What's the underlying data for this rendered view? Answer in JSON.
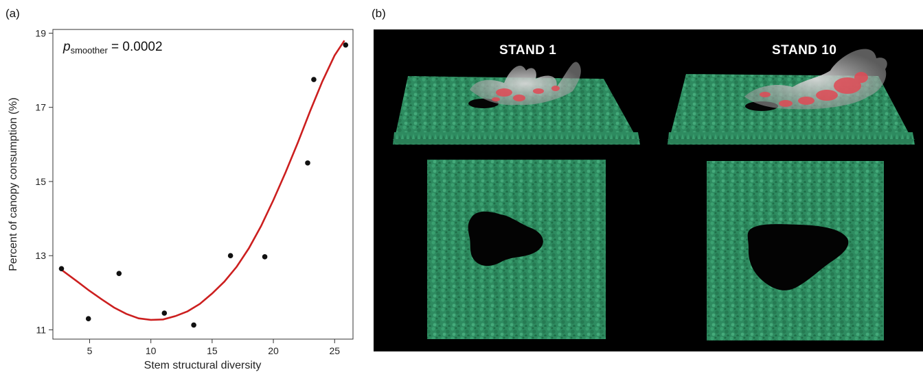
{
  "panels": {
    "a_label": "(a)",
    "b_label": "(b)"
  },
  "chart_data": {
    "type": "scatter",
    "annotation": {
      "symbol": "p",
      "subscript": "smoother",
      "text": " = 0.0002"
    },
    "xlabel": "Stem structural diversity",
    "ylabel": "Percent of canopy consumption (%)",
    "xlim": [
      2,
      26.5
    ],
    "ylim": [
      10.75,
      19.1
    ],
    "xticks": [
      5,
      10,
      15,
      20,
      25
    ],
    "yticks": [
      11,
      13,
      15,
      17,
      19
    ],
    "grid": false,
    "points": [
      {
        "x": 2.7,
        "y": 12.65
      },
      {
        "x": 4.9,
        "y": 11.3
      },
      {
        "x": 7.4,
        "y": 12.52
      },
      {
        "x": 11.1,
        "y": 11.45
      },
      {
        "x": 13.5,
        "y": 11.13
      },
      {
        "x": 16.5,
        "y": 13.0
      },
      {
        "x": 19.3,
        "y": 12.97
      },
      {
        "x": 22.8,
        "y": 15.5
      },
      {
        "x": 23.3,
        "y": 17.75
      },
      {
        "x": 25.9,
        "y": 18.68
      }
    ],
    "smoother": {
      "color": "#cc1f1f",
      "x": [
        2.7,
        4,
        5,
        6,
        7,
        8,
        9,
        10,
        11,
        12,
        13,
        14,
        15,
        16,
        17,
        18,
        19,
        20,
        21,
        22,
        23,
        24,
        25,
        25.8
      ],
      "y": [
        12.62,
        12.3,
        12.05,
        11.82,
        11.6,
        11.43,
        11.31,
        11.27,
        11.28,
        11.37,
        11.5,
        11.7,
        11.98,
        12.3,
        12.7,
        13.2,
        13.8,
        14.5,
        15.25,
        16.05,
        16.9,
        17.7,
        18.4,
        18.8
      ]
    },
    "point_color": "#111111"
  },
  "render": {
    "stand1_title": "STAND 1",
    "stand10_title": "STAND 10",
    "canopy_color": "#2e8b60",
    "fire_color": "#e04a55",
    "smoke_color": "#b5b5b5"
  }
}
